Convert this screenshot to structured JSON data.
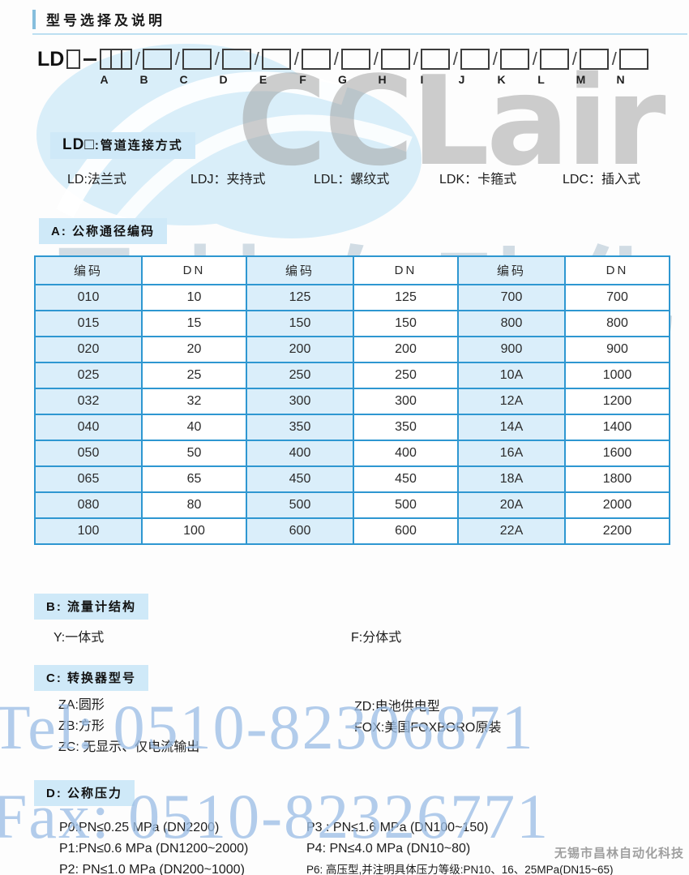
{
  "page_title": "型号选择及说明",
  "model_code": {
    "prefix": "LD",
    "box_letters": [
      "A",
      "B",
      "C",
      "D",
      "E",
      "F",
      "G",
      "H",
      "I",
      "J",
      "K",
      "L",
      "M",
      "N"
    ]
  },
  "sections": {
    "connection": {
      "header_code": "LD□",
      "header_label": ":管道连接方式",
      "items": [
        "LD:法兰式",
        "LDJ：夹持式",
        "LDL：螺纹式",
        "LDK：卡箍式",
        "LDC：插入式"
      ]
    },
    "diameter": {
      "header": "A: 公称通径编码",
      "table": {
        "columns": [
          "编码",
          "DN",
          "编码",
          "DN",
          "编码",
          "DN"
        ],
        "rows": [
          [
            "010",
            "10",
            "125",
            "125",
            "700",
            "700"
          ],
          [
            "015",
            "15",
            "150",
            "150",
            "800",
            "800"
          ],
          [
            "020",
            "20",
            "200",
            "200",
            "900",
            "900"
          ],
          [
            "025",
            "25",
            "250",
            "250",
            "10A",
            "1000"
          ],
          [
            "032",
            "32",
            "300",
            "300",
            "12A",
            "1200"
          ],
          [
            "040",
            "40",
            "350",
            "350",
            "14A",
            "1400"
          ],
          [
            "050",
            "50",
            "400",
            "400",
            "16A",
            "1600"
          ],
          [
            "065",
            "65",
            "450",
            "450",
            "18A",
            "1800"
          ],
          [
            "080",
            "80",
            "500",
            "500",
            "20A",
            "2000"
          ],
          [
            "100",
            "100",
            "600",
            "600",
            "22A",
            "2200"
          ]
        ]
      }
    },
    "structure": {
      "header": "B: 流量计结构",
      "items": [
        "Y:一体式",
        "F:分体式"
      ]
    },
    "converter": {
      "header": "C: 转换器型号",
      "left_items": [
        "ZA:圆形",
        "ZB:方形",
        "ZC: 无显示、仅电流输出"
      ],
      "right_items": [
        "ZD:电池供电型",
        "FOX:美国FOXBORO原装"
      ]
    },
    "pressure": {
      "header": "D: 公称压力",
      "left_items": [
        "P0:PN≤0.25 MPa (DN2200)",
        "P1:PN≤0.6 MPa (DN1200~2000)",
        "P2: PN≤1.0 MPa (DN200~1000)"
      ],
      "right_items": [
        "P3 : PN≤1.6 MPa (DN100~150)",
        "P4: PN≤4.0 MPa (DN10~80)",
        "P6: 高压型,并注明具体压力等级:PN10、16、25MPa(DN15~65)"
      ]
    }
  },
  "watermarks": {
    "logo_text": "CCLair",
    "cn_text": "昌林自动化",
    "tel": "Tel: 0510-82306871",
    "fax": "Fax: 0510-82326771",
    "company": "无锡市昌林自动化科技"
  },
  "colors": {
    "table_border_blue": "#2e97d1",
    "cell_blue": "#daeefa",
    "pill_blue": "#cfe9f8",
    "watermark_blue": "#9dbfe6",
    "watermark_gray": "#9d9d9d",
    "accent_bar_blue": "#85bedd"
  }
}
